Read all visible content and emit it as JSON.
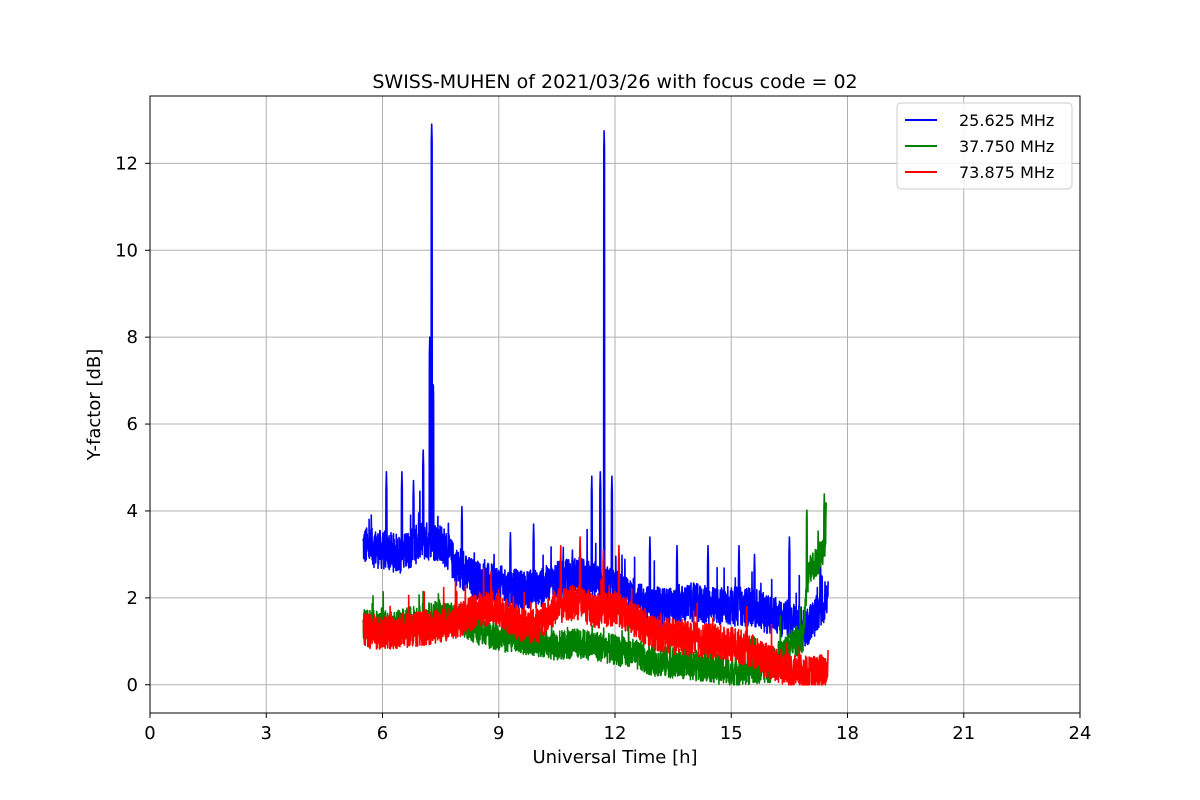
{
  "chart_data": {
    "type": "line",
    "title": "SWISS-MUHEN of 2021/03/26 with focus code = 02",
    "xlabel": "Universal Time [h]",
    "ylabel": "Y-factor [dB]",
    "xlim": [
      0,
      24
    ],
    "ylim": [
      -0.65,
      13.55
    ],
    "xticks": [
      0,
      3,
      6,
      9,
      12,
      15,
      18,
      21,
      24
    ],
    "yticks": [
      0,
      2,
      4,
      6,
      8,
      10,
      12
    ],
    "grid": true,
    "legend_position": "top-right",
    "series": [
      {
        "name": "25.625 MHz",
        "color": "#0000ff",
        "base": [
          [
            5.5,
            3.2
          ],
          [
            6,
            3.1
          ],
          [
            6.5,
            3.0
          ],
          [
            7,
            3.3
          ],
          [
            7.5,
            3.3
          ],
          [
            8,
            2.6
          ],
          [
            8.5,
            2.4
          ],
          [
            9,
            2.3
          ],
          [
            9.5,
            2.2
          ],
          [
            10,
            2.2
          ],
          [
            10.5,
            2.4
          ],
          [
            11,
            2.5
          ],
          [
            11.5,
            2.4
          ],
          [
            12,
            2.2
          ],
          [
            12.5,
            1.9
          ],
          [
            13,
            1.8
          ],
          [
            13.5,
            1.8
          ],
          [
            14,
            1.9
          ],
          [
            14.5,
            1.8
          ],
          [
            15,
            1.8
          ],
          [
            15.5,
            1.8
          ],
          [
            16,
            1.6
          ],
          [
            16.5,
            1.5
          ],
          [
            16.9,
            1.3
          ],
          [
            17.2,
            1.6
          ],
          [
            17.5,
            2.0
          ]
        ],
        "noise": 0.45,
        "spikes": [
          [
            7.22,
            8.0
          ],
          [
            7.27,
            12.9
          ],
          [
            7.31,
            6.9
          ],
          [
            11.62,
            4.9
          ],
          [
            11.72,
            12.75
          ],
          [
            11.92,
            4.8
          ],
          [
            6.1,
            4.9
          ],
          [
            6.5,
            4.9
          ],
          [
            6.8,
            4.7
          ],
          [
            7.05,
            5.4
          ],
          [
            8.05,
            4.1
          ],
          [
            9.3,
            3.5
          ],
          [
            9.9,
            3.7
          ],
          [
            10.9,
            3.1
          ],
          [
            11.4,
            4.8
          ],
          [
            12.9,
            3.4
          ],
          [
            13.6,
            3.2
          ],
          [
            14.4,
            3.2
          ],
          [
            15.2,
            3.2
          ],
          [
            15.6,
            3.0
          ],
          [
            16.5,
            3.4
          ],
          [
            17.3,
            2.9
          ]
        ]
      },
      {
        "name": "37.750 MHz",
        "color": "#008000",
        "base": [
          [
            5.5,
            1.4
          ],
          [
            6,
            1.35
          ],
          [
            6.5,
            1.4
          ],
          [
            7,
            1.5
          ],
          [
            7.5,
            1.6
          ],
          [
            8,
            1.5
          ],
          [
            8.5,
            1.25
          ],
          [
            9,
            1.1
          ],
          [
            9.5,
            1.05
          ],
          [
            10,
            1.0
          ],
          [
            10.5,
            0.9
          ],
          [
            11,
            0.95
          ],
          [
            11.5,
            0.9
          ],
          [
            12,
            0.8
          ],
          [
            12.5,
            0.7
          ],
          [
            13,
            0.55
          ],
          [
            13.5,
            0.5
          ],
          [
            14,
            0.45
          ],
          [
            14.5,
            0.4
          ],
          [
            15,
            0.3
          ],
          [
            15.5,
            0.35
          ],
          [
            16,
            0.4
          ],
          [
            16.5,
            0.9
          ],
          [
            16.85,
            1.1
          ],
          [
            17.0,
            2.7
          ],
          [
            17.2,
            2.8
          ],
          [
            17.45,
            3.3
          ]
        ],
        "noise": 0.35,
        "spikes": [
          [
            16.95,
            4.1
          ],
          [
            17.4,
            4.4
          ],
          [
            17.45,
            4.2
          ]
        ]
      },
      {
        "name": "73.875 MHz",
        "color": "#ff0000",
        "base": [
          [
            5.5,
            1.25
          ],
          [
            6,
            1.2
          ],
          [
            6.5,
            1.25
          ],
          [
            7,
            1.3
          ],
          [
            7.5,
            1.35
          ],
          [
            8,
            1.5
          ],
          [
            8.5,
            1.75
          ],
          [
            9,
            1.75
          ],
          [
            9.5,
            1.4
          ],
          [
            10,
            1.35
          ],
          [
            10.5,
            1.8
          ],
          [
            11,
            1.9
          ],
          [
            11.5,
            1.7
          ],
          [
            12,
            1.75
          ],
          [
            12.5,
            1.5
          ],
          [
            13,
            1.2
          ],
          [
            13.5,
            1.1
          ],
          [
            14,
            1.05
          ],
          [
            14.5,
            1.0
          ],
          [
            15,
            0.95
          ],
          [
            15.5,
            0.8
          ],
          [
            16,
            0.5
          ],
          [
            16.5,
            0.35
          ],
          [
            17,
            0.25
          ],
          [
            17.5,
            0.35
          ]
        ],
        "noise": 0.4,
        "spikes": [
          [
            8.8,
            2.6
          ],
          [
            10.6,
            3.2
          ],
          [
            11.1,
            3.4
          ],
          [
            11.7,
            3.1
          ],
          [
            12.1,
            3.2
          ],
          [
            15.4,
            1.8
          ],
          [
            17.5,
            0.8
          ]
        ]
      }
    ]
  }
}
